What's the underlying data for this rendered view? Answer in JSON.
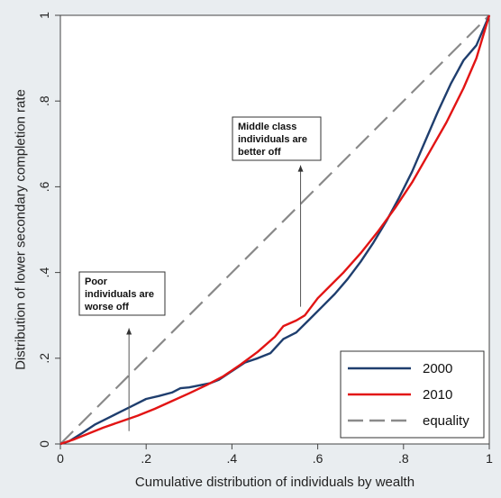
{
  "chart_data": {
    "type": "line",
    "xlabel": "Cumulative distribution of individuals by wealth",
    "ylabel": "Distribution of lower secondary completion rate",
    "xlim": [
      0,
      1
    ],
    "ylim": [
      0,
      1
    ],
    "x_ticks": [
      {
        "value": 0,
        "label": "0"
      },
      {
        "value": 0.2,
        "label": ".2"
      },
      {
        "value": 0.4,
        "label": ".4"
      },
      {
        "value": 0.6,
        "label": ".6"
      },
      {
        "value": 0.8,
        "label": ".8"
      },
      {
        "value": 1,
        "label": "1"
      }
    ],
    "y_ticks": [
      {
        "value": 0,
        "label": "0"
      },
      {
        "value": 0.2,
        "label": ".2"
      },
      {
        "value": 0.4,
        "label": ".4"
      },
      {
        "value": 0.6,
        "label": ".6"
      },
      {
        "value": 0.8,
        "label": ".8"
      },
      {
        "value": 1,
        "label": "1"
      }
    ],
    "grid": false,
    "legend_position": "bottom-right",
    "series": [
      {
        "name": "2000",
        "color": "#1f3e6e",
        "dash": "solid",
        "points": [
          [
            0,
            0
          ],
          [
            0.02,
            0.006
          ],
          [
            0.05,
            0.025
          ],
          [
            0.08,
            0.045
          ],
          [
            0.11,
            0.06
          ],
          [
            0.14,
            0.075
          ],
          [
            0.17,
            0.09
          ],
          [
            0.2,
            0.105
          ],
          [
            0.23,
            0.112
          ],
          [
            0.26,
            0.12
          ],
          [
            0.28,
            0.13
          ],
          [
            0.3,
            0.132
          ],
          [
            0.32,
            0.136
          ],
          [
            0.35,
            0.142
          ],
          [
            0.37,
            0.15
          ],
          [
            0.4,
            0.17
          ],
          [
            0.43,
            0.19
          ],
          [
            0.46,
            0.2
          ],
          [
            0.49,
            0.212
          ],
          [
            0.52,
            0.245
          ],
          [
            0.55,
            0.26
          ],
          [
            0.58,
            0.29
          ],
          [
            0.61,
            0.32
          ],
          [
            0.64,
            0.35
          ],
          [
            0.67,
            0.385
          ],
          [
            0.7,
            0.425
          ],
          [
            0.73,
            0.47
          ],
          [
            0.76,
            0.52
          ],
          [
            0.79,
            0.575
          ],
          [
            0.82,
            0.635
          ],
          [
            0.85,
            0.705
          ],
          [
            0.88,
            0.775
          ],
          [
            0.91,
            0.84
          ],
          [
            0.94,
            0.895
          ],
          [
            0.97,
            0.93
          ],
          [
            1,
            1
          ]
        ]
      },
      {
        "name": "2010",
        "color": "#e21414",
        "dash": "solid",
        "points": [
          [
            0,
            0
          ],
          [
            0.03,
            0.01
          ],
          [
            0.06,
            0.022
          ],
          [
            0.1,
            0.038
          ],
          [
            0.14,
            0.052
          ],
          [
            0.18,
            0.066
          ],
          [
            0.22,
            0.082
          ],
          [
            0.26,
            0.1
          ],
          [
            0.3,
            0.118
          ],
          [
            0.34,
            0.137
          ],
          [
            0.38,
            0.158
          ],
          [
            0.42,
            0.185
          ],
          [
            0.46,
            0.215
          ],
          [
            0.5,
            0.25
          ],
          [
            0.52,
            0.275
          ],
          [
            0.55,
            0.288
          ],
          [
            0.57,
            0.3
          ],
          [
            0.6,
            0.34
          ],
          [
            0.63,
            0.37
          ],
          [
            0.66,
            0.4
          ],
          [
            0.7,
            0.445
          ],
          [
            0.74,
            0.495
          ],
          [
            0.78,
            0.55
          ],
          [
            0.82,
            0.61
          ],
          [
            0.86,
            0.68
          ],
          [
            0.9,
            0.75
          ],
          [
            0.94,
            0.83
          ],
          [
            0.97,
            0.9
          ],
          [
            1,
            1
          ]
        ]
      },
      {
        "name": "equality",
        "color": "#8a8a8a",
        "dash": "dashed",
        "points": [
          [
            0,
            0
          ],
          [
            1,
            1
          ]
        ]
      }
    ],
    "annotations": [
      {
        "id": "poor",
        "lines": [
          "Poor",
          "individuals are",
          "worse off"
        ],
        "arrow_from": [
          0.16,
          0.03
        ],
        "arrow_to": [
          0.16,
          0.27
        ]
      },
      {
        "id": "middle",
        "lines": [
          "Middle class",
          "individuals are",
          "better off"
        ],
        "arrow_from": [
          0.56,
          0.32
        ],
        "arrow_to": [
          0.56,
          0.65
        ]
      }
    ]
  }
}
